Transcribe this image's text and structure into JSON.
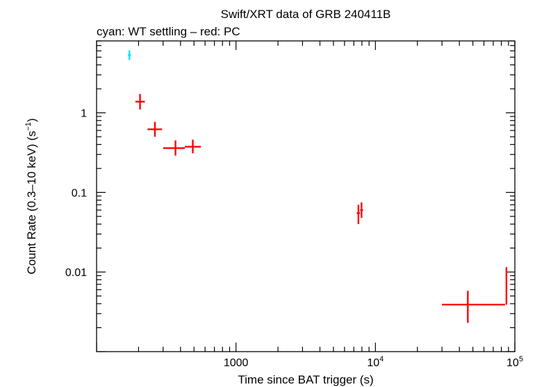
{
  "chart_data": {
    "type": "scatter",
    "title": "Swift/XRT data of GRB 240411B",
    "subtitle": "cyan: WT settling – red: PC",
    "xlabel": "Time since BAT trigger (s)",
    "ylabel": "Count Rate (0.3–10 keV) (s",
    "ylabel_sup": "−1",
    "ylabel_end": ")",
    "x_scale": "log",
    "y_scale": "log",
    "xlim": [
      100,
      100000
    ],
    "ylim": [
      0.001,
      8
    ],
    "grid": false,
    "x_ticks": [
      {
        "value": 1000,
        "label": "1000",
        "sup": ""
      },
      {
        "value": 10000,
        "label": "10",
        "sup": "4"
      },
      {
        "value": 100000,
        "label": "10",
        "sup": "5"
      }
    ],
    "y_ticks": [
      {
        "value": 0.01,
        "label": "0.01"
      },
      {
        "value": 0.1,
        "label": "0.1"
      },
      {
        "value": 1,
        "label": "1"
      }
    ],
    "series": [
      {
        "color": "#00e5ff",
        "points": [
          {
            "x": 172,
            "xlo": 168,
            "xhi": 176,
            "y": 5.3,
            "ylo": 4.6,
            "yhi": 6.1
          }
        ]
      },
      {
        "color": "#ff0000",
        "points": [
          {
            "x": 205,
            "xlo": 190,
            "xhi": 222,
            "y": 1.38,
            "ylo": 1.1,
            "yhi": 1.72
          },
          {
            "x": 262,
            "xlo": 232,
            "xhi": 295,
            "y": 0.62,
            "ylo": 0.5,
            "yhi": 0.77
          },
          {
            "x": 368,
            "xlo": 300,
            "xhi": 430,
            "y": 0.36,
            "ylo": 0.29,
            "yhi": 0.45
          },
          {
            "x": 490,
            "xlo": 430,
            "xhi": 560,
            "y": 0.375,
            "ylo": 0.31,
            "yhi": 0.46
          },
          {
            "x": 7550,
            "xlo": 7350,
            "xhi": 7750,
            "y": 0.055,
            "ylo": 0.04,
            "yhi": 0.07
          },
          {
            "x": 7950,
            "xlo": 7770,
            "xhi": 8150,
            "y": 0.06,
            "ylo": 0.048,
            "yhi": 0.075
          },
          {
            "x": 46000,
            "xlo": 30000,
            "xhi": 85000,
            "y": 0.0039,
            "ylo": 0.0023,
            "yhi": 0.0058
          },
          {
            "x": 87000,
            "xlo": 86500,
            "xhi": 87500,
            "y": 0.0052,
            "ylo": 0.0039,
            "yhi": 0.0115
          }
        ]
      }
    ]
  }
}
